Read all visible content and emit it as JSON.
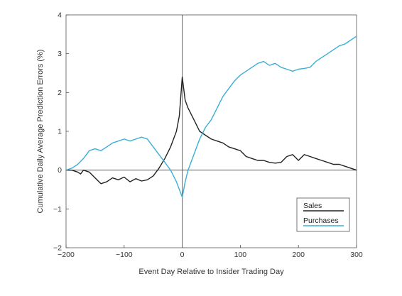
{
  "chart_data": {
    "type": "line",
    "xlabel": "Event Day Relative to Insider Trading Day",
    "ylabel": "Cumulative Daily Average Prediction Errors (%)",
    "xlim": [
      -200,
      300
    ],
    "ylim": [
      -2,
      4
    ],
    "xticks": [
      -200,
      -100,
      0,
      100,
      200,
      300
    ],
    "xtick_labels": [
      "−200",
      "−100",
      "0",
      "100",
      "200",
      "300"
    ],
    "yticks": [
      -2,
      -1,
      0,
      1,
      2,
      3,
      4
    ],
    "ytick_labels": [
      "−2",
      "−1",
      "0",
      "1",
      "2",
      "3",
      "4"
    ],
    "grid": false,
    "legend_position": "bottom-right",
    "series": [
      {
        "name": "Sales",
        "color": "#222222",
        "x": [
          -200,
          -190,
          -180,
          -175,
          -170,
          -160,
          -150,
          -140,
          -130,
          -120,
          -110,
          -100,
          -90,
          -80,
          -70,
          -60,
          -50,
          -40,
          -30,
          -20,
          -10,
          -5,
          0,
          5,
          10,
          20,
          30,
          40,
          50,
          60,
          70,
          80,
          90,
          100,
          110,
          120,
          130,
          140,
          150,
          160,
          170,
          180,
          190,
          200,
          210,
          220,
          230,
          240,
          250,
          260,
          270,
          280,
          290,
          300
        ],
        "y": [
          0.0,
          0.0,
          -0.05,
          -0.1,
          0.0,
          -0.05,
          -0.2,
          -0.35,
          -0.3,
          -0.2,
          -0.25,
          -0.18,
          -0.3,
          -0.22,
          -0.28,
          -0.25,
          -0.15,
          0.05,
          0.3,
          0.6,
          1.0,
          1.4,
          2.4,
          1.8,
          1.6,
          1.3,
          1.0,
          0.9,
          0.8,
          0.75,
          0.7,
          0.6,
          0.55,
          0.5,
          0.35,
          0.3,
          0.25,
          0.25,
          0.2,
          0.18,
          0.2,
          0.35,
          0.4,
          0.25,
          0.4,
          0.35,
          0.3,
          0.25,
          0.2,
          0.15,
          0.15,
          0.1,
          0.05,
          0.0
        ]
      },
      {
        "name": "Purchases",
        "color": "#3AAFD6",
        "x": [
          -200,
          -190,
          -180,
          -170,
          -160,
          -150,
          -140,
          -130,
          -120,
          -110,
          -100,
          -90,
          -80,
          -70,
          -60,
          -50,
          -40,
          -30,
          -20,
          -10,
          -5,
          0,
          5,
          10,
          20,
          30,
          40,
          50,
          60,
          70,
          80,
          90,
          100,
          110,
          120,
          130,
          140,
          150,
          160,
          170,
          180,
          190,
          200,
          210,
          220,
          230,
          240,
          250,
          260,
          270,
          280,
          290,
          300
        ],
        "y": [
          0.0,
          0.05,
          0.15,
          0.3,
          0.5,
          0.55,
          0.5,
          0.6,
          0.7,
          0.75,
          0.8,
          0.75,
          0.8,
          0.85,
          0.8,
          0.6,
          0.4,
          0.2,
          0.0,
          -0.3,
          -0.5,
          -0.7,
          -0.3,
          0.0,
          0.4,
          0.8,
          1.1,
          1.3,
          1.6,
          1.9,
          2.1,
          2.3,
          2.45,
          2.55,
          2.65,
          2.75,
          2.8,
          2.7,
          2.75,
          2.65,
          2.6,
          2.55,
          2.6,
          2.62,
          2.65,
          2.8,
          2.9,
          3.0,
          3.1,
          3.2,
          3.25,
          3.35,
          3.45
        ]
      }
    ]
  }
}
